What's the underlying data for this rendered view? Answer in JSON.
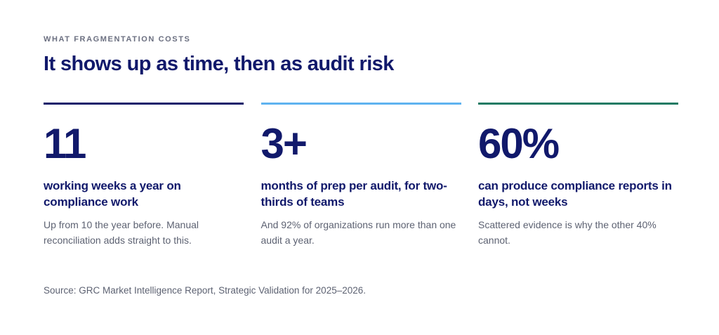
{
  "eyebrow": "WHAT FRAGMENTATION COSTS",
  "headline": "It shows up as time, then as audit risk",
  "stats": [
    {
      "value": "11",
      "label": "working weeks a year on compliance work",
      "note": "Up from 10 the year before. Manual reconciliation adds straight to this.",
      "accent": "#161d6b"
    },
    {
      "value": "3+",
      "label": "months of prep per audit, for two-thirds of teams",
      "note": "And 92% of organizations run more than one audit a year.",
      "accent": "#5fb3f0"
    },
    {
      "value": "60%",
      "label": "can produce compliance reports in days, not weeks",
      "note": "Scattered evidence is why the other 40% cannot.",
      "accent": "#1f7a63"
    }
  ],
  "source": "Source: GRC Market Intelligence Report, Strategic Validation for 2025–2026.",
  "colors": {
    "heading": "#11196b",
    "body_text": "#5d6272",
    "eyebrow": "#6b6f80",
    "background": "#ffffff"
  }
}
